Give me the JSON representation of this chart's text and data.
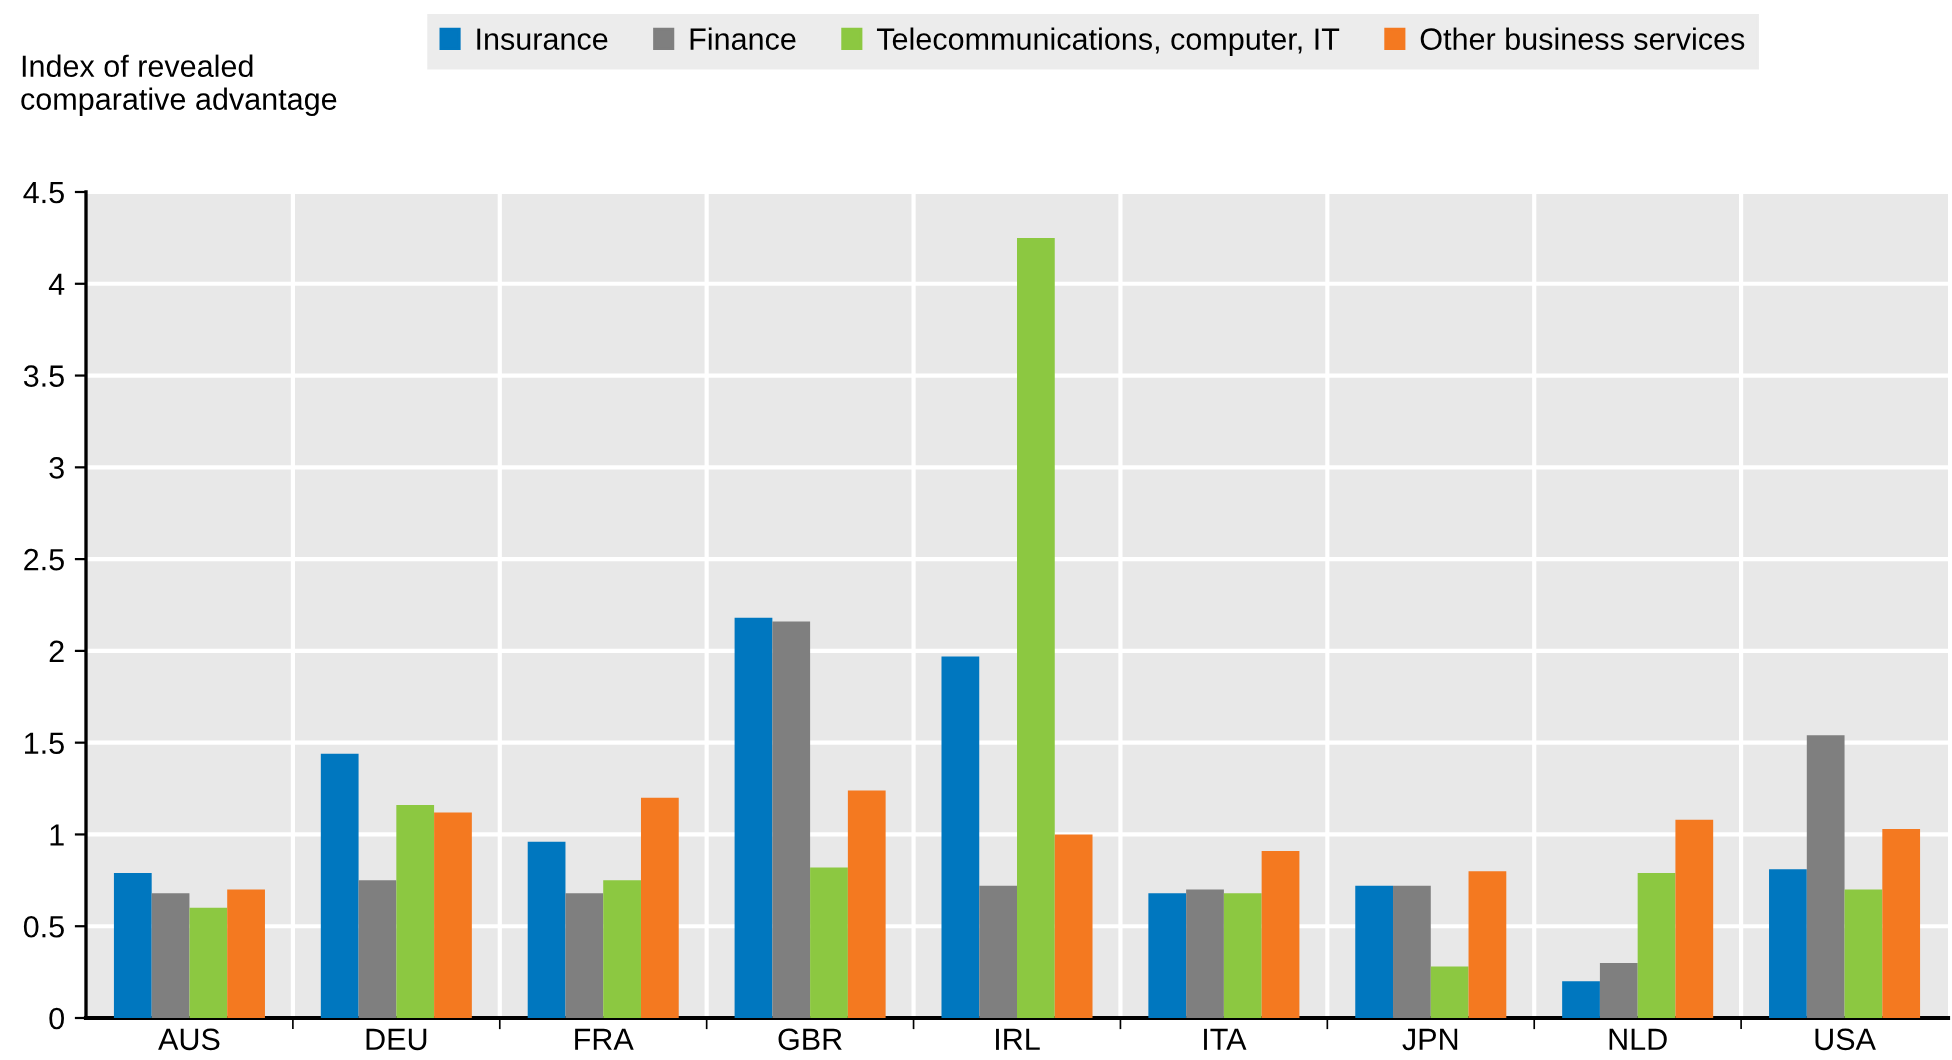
{
  "chart_data": {
    "type": "bar",
    "ylabel": "Index of revealed\ncomparative advantage",
    "categories": [
      "AUS",
      "DEU",
      "FRA",
      "GBR",
      "IRL",
      "ITA",
      "JPN",
      "NLD",
      "USA"
    ],
    "series": [
      {
        "name": "Insurance",
        "color": "#0077bf",
        "values": [
          0.79,
          1.44,
          0.96,
          2.18,
          1.97,
          0.68,
          0.72,
          0.2,
          0.81
        ]
      },
      {
        "name": "Finance",
        "color": "#7f7f7f",
        "values": [
          0.68,
          0.75,
          0.68,
          2.16,
          0.72,
          0.7,
          0.72,
          0.3,
          1.54
        ]
      },
      {
        "name": "Telecommunications, computer, IT",
        "color": "#8cc841",
        "values": [
          0.6,
          1.16,
          0.75,
          0.82,
          4.25,
          0.68,
          0.28,
          0.79,
          0.7
        ]
      },
      {
        "name": "Other business services",
        "color": "#f47920",
        "values": [
          0.7,
          1.12,
          1.2,
          1.24,
          1.0,
          0.91,
          0.8,
          1.08,
          1.03
        ]
      }
    ],
    "ylim": [
      0,
      4.5
    ],
    "yticks": [
      0,
      0.5,
      1,
      1.5,
      2,
      2.5,
      3,
      3.5,
      4,
      4.5
    ],
    "grid": true,
    "legend": "top"
  }
}
